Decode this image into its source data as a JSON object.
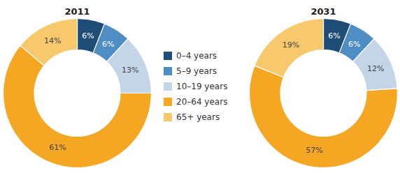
{
  "chart_data": [
    {
      "type": "pie",
      "title": "2011",
      "categories": [
        "0–4 years",
        "5–9 years",
        "10–19 years",
        "20–64 years",
        "65+ years"
      ],
      "values": [
        6,
        6,
        13,
        61,
        14
      ],
      "value_labels": [
        "6%",
        "6%",
        "13%",
        "61%",
        "14%"
      ],
      "colors": [
        "#1e4d78",
        "#4e8ec4",
        "#c5d5e8",
        "#f5a623",
        "#f8c96c"
      ],
      "data_labels": true,
      "legend": "center"
    },
    {
      "type": "pie",
      "title": "2031",
      "categories": [
        "0–4 years",
        "5–9 years",
        "10–19 years",
        "20–64 years",
        "65+ years"
      ],
      "values": [
        6,
        6,
        12,
        57,
        19
      ],
      "value_labels": [
        "6%",
        "6%",
        "12%",
        "57%",
        "19%"
      ],
      "colors": [
        "#1e4d78",
        "#4e8ec4",
        "#c5d5e8",
        "#f5a623",
        "#f8c96c"
      ],
      "data_labels": true,
      "legend": "center"
    }
  ]
}
